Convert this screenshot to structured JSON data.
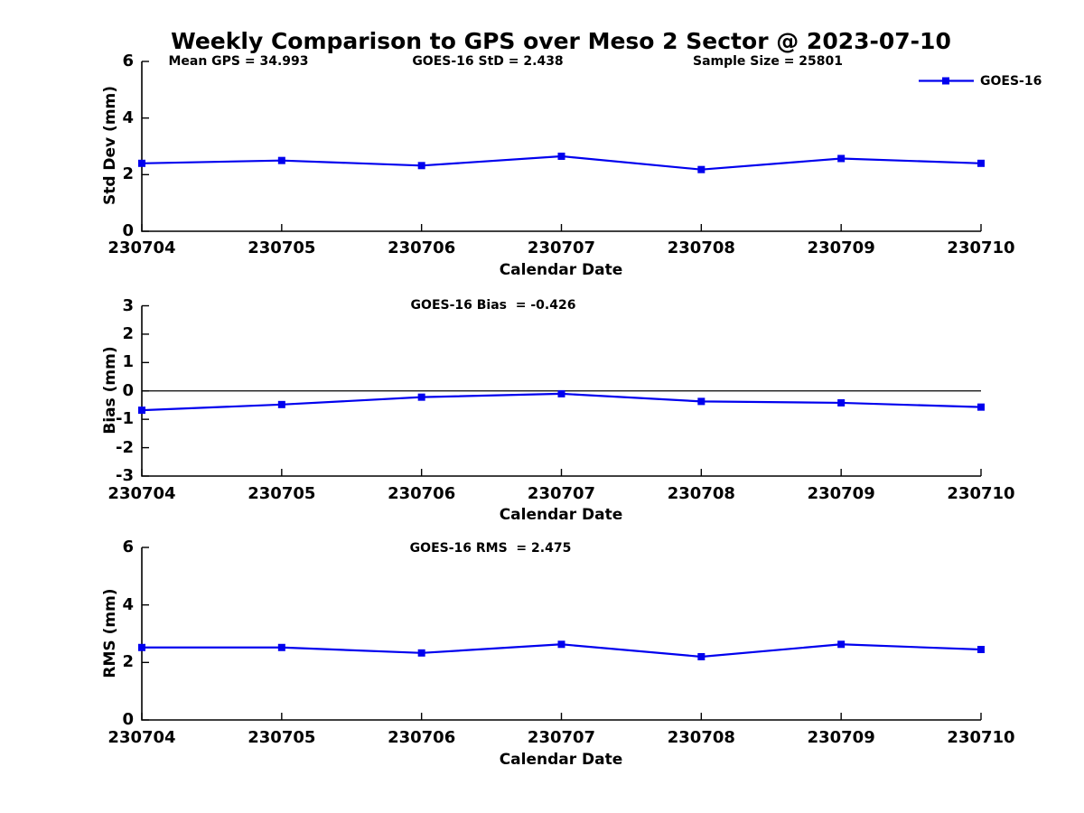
{
  "title": "Weekly Comparison to GPS over Meso 2 Sector @ 2023-07-10",
  "legend": {
    "label": "GOES-16",
    "position": "top-right",
    "line_color": "#0000EE"
  },
  "colors": {
    "series": "#0000EE",
    "axis": "#000000",
    "text": "#000000",
    "background": "#ffffff"
  },
  "chart_data": [
    {
      "type": "line",
      "ylabel": "Std Dev (mm)",
      "xlabel": "Calendar Date",
      "categories": [
        "230704",
        "230705",
        "230706",
        "230707",
        "230708",
        "230709",
        "230710"
      ],
      "series": [
        {
          "name": "GOES-16",
          "marker": "square",
          "values": [
            2.4,
            2.5,
            2.32,
            2.65,
            2.18,
            2.57,
            2.4
          ]
        }
      ],
      "ylim": [
        0,
        6
      ],
      "yticks": [
        0,
        2,
        4,
        6
      ],
      "grid": false,
      "zero_line": false,
      "annotations": [
        "Mean GPS = 34.993",
        "GOES-16 StD = 2.438",
        "Sample Size = 25801"
      ]
    },
    {
      "type": "line",
      "ylabel": "Bias (mm)",
      "xlabel": "Calendar Date",
      "categories": [
        "230704",
        "230705",
        "230706",
        "230707",
        "230708",
        "230709",
        "230710"
      ],
      "series": [
        {
          "name": "GOES-16",
          "marker": "square",
          "values": [
            -0.68,
            -0.48,
            -0.22,
            -0.1,
            -0.37,
            -0.42,
            -0.57
          ]
        }
      ],
      "ylim": [
        -3,
        3
      ],
      "yticks": [
        3,
        2,
        1,
        0,
        -1,
        -2,
        -3
      ],
      "grid": false,
      "zero_line": true,
      "annotations": [
        "GOES-16 Bias  = -0.426"
      ]
    },
    {
      "type": "line",
      "ylabel": "RMS (mm)",
      "xlabel": "Calendar Date",
      "categories": [
        "230704",
        "230705",
        "230706",
        "230707",
        "230708",
        "230709",
        "230710"
      ],
      "series": [
        {
          "name": "GOES-16",
          "marker": "square",
          "values": [
            2.52,
            2.52,
            2.33,
            2.63,
            2.2,
            2.63,
            2.45
          ]
        }
      ],
      "ylim": [
        0,
        6
      ],
      "yticks": [
        0,
        2,
        4,
        6
      ],
      "grid": false,
      "zero_line": false,
      "annotations": [
        "GOES-16 RMS  = 2.475"
      ]
    }
  ]
}
